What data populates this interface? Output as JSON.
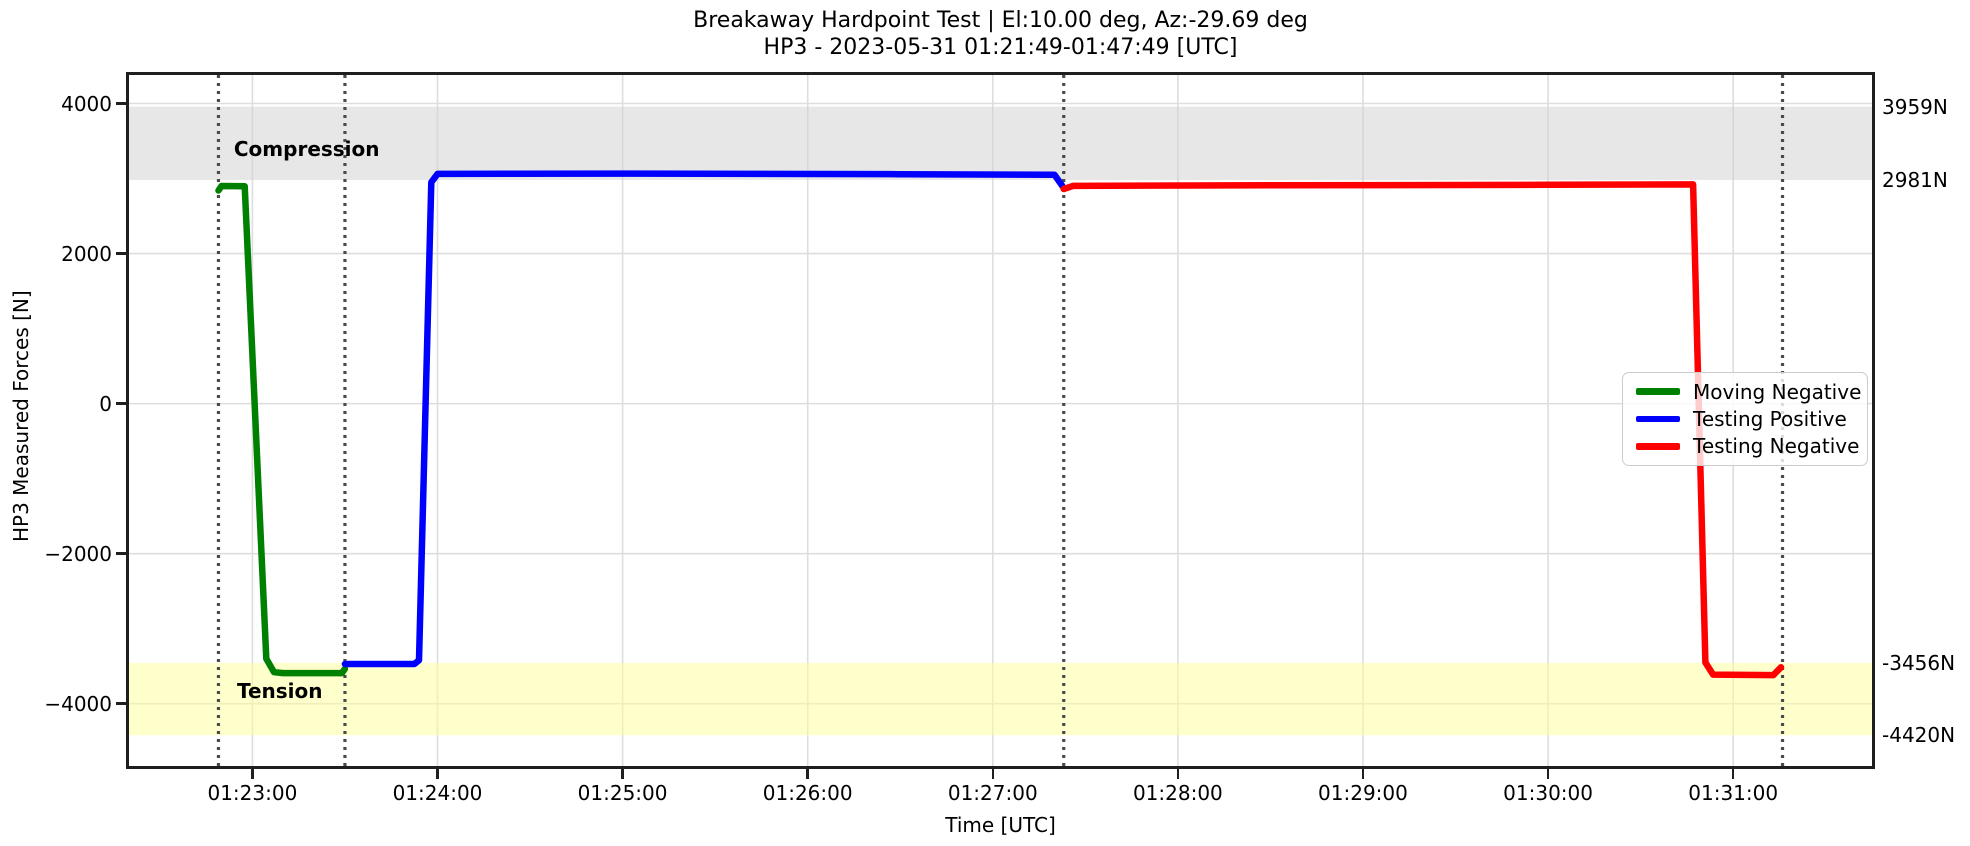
{
  "figure": {
    "title_line1": "Breakaway Hardpoint Test | El:10.00 deg, Az:-29.69 deg",
    "title_line2": "HP3 - 2023-05-31 01:21:49-01:47:49 [UTC]",
    "xlabel": "Time [UTC]",
    "ylabel": "HP3 Measured Forces [N]"
  },
  "chart_data": {
    "type": "line",
    "title": "Breakaway Hardpoint Test | El:10.00 deg, Az:-29.69 deg\nHP3 - 2023-05-31 01:21:49-01:47:49 [UTC]",
    "xlabel": "Time [UTC]",
    "ylabel": "HP3 Measured Forces [N]",
    "xlim": [
      "01:22:20",
      "01:31:45"
    ],
    "ylim": [
      -4830,
      4380
    ],
    "grid": true,
    "x_ticks": [
      "01:23:00",
      "01:24:00",
      "01:25:00",
      "01:26:00",
      "01:27:00",
      "01:28:00",
      "01:29:00",
      "01:30:00",
      "01:31:00"
    ],
    "y_ticks": [
      {
        "value": 4000,
        "label": "4000"
      },
      {
        "value": 2000,
        "label": "2000"
      },
      {
        "value": 0,
        "label": "0"
      },
      {
        "value": -2000,
        "label": "−2000"
      },
      {
        "value": -4000,
        "label": "−4000"
      }
    ],
    "series": [
      {
        "name": "Moving Negative",
        "color": "#008000",
        "points": [
          [
            "01:22:49",
            2840
          ],
          [
            "01:22:50",
            2900
          ],
          [
            "01:22:57.5",
            2898
          ],
          [
            "01:23:04.5",
            -3400
          ],
          [
            "01:23:07",
            -3580
          ],
          [
            "01:23:10",
            -3592
          ],
          [
            "01:23:29",
            -3592
          ],
          [
            "01:23:30",
            -3535
          ]
        ]
      },
      {
        "name": "Testing Positive",
        "color": "#0000ff",
        "points": [
          [
            "01:23:30",
            -3470
          ],
          [
            "01:23:52.5",
            -3470
          ],
          [
            "01:23:54",
            -3420
          ],
          [
            "01:23:58",
            2950
          ],
          [
            "01:24:00",
            3062
          ],
          [
            "01:25:00",
            3066
          ],
          [
            "01:26:30",
            3058
          ],
          [
            "01:27:20",
            3050
          ],
          [
            "01:27:22.5",
            2905
          ]
        ]
      },
      {
        "name": "Testing Negative",
        "color": "#ff0000",
        "points": [
          [
            "01:27:23",
            2860
          ],
          [
            "01:27:26",
            2902
          ],
          [
            "01:28:30",
            2910
          ],
          [
            "01:30:00",
            2916
          ],
          [
            "01:30:47",
            2922
          ],
          [
            "01:30:51",
            -3450
          ],
          [
            "01:30:53.5",
            -3612
          ],
          [
            "01:31:13",
            -3618
          ],
          [
            "01:31:15.5",
            -3515
          ]
        ]
      }
    ],
    "vlines": {
      "times": [
        "01:22:49",
        "01:23:30",
        "01:27:23",
        "01:31:16"
      ],
      "color": "#4a4a4a",
      "style": "dotted"
    },
    "bands": [
      {
        "name": "compression",
        "from": 2981,
        "to": 3959,
        "fill": "rgba(208,208,208,0.5)"
      },
      {
        "name": "tension",
        "from": -4420,
        "to": -3456,
        "fill": "rgba(255,255,153,0.5)"
      }
    ],
    "region_labels": [
      {
        "text": "Compression",
        "time": "01:22:54",
        "value": 3390
      },
      {
        "text": "Tension",
        "time": "01:22:55",
        "value": -3830
      }
    ],
    "right_annotations": [
      {
        "text": "3959N",
        "value": 3959
      },
      {
        "text": "2981N",
        "value": 2981
      },
      {
        "text": "-3456N",
        "value": -3456
      },
      {
        "text": "-4420N",
        "value": -4420
      }
    ],
    "legend_position": "right",
    "legend": [
      "Moving Negative",
      "Testing Positive",
      "Testing Negative"
    ],
    "grid_color": "#dedede",
    "spine_color": "#1f1f1f"
  }
}
